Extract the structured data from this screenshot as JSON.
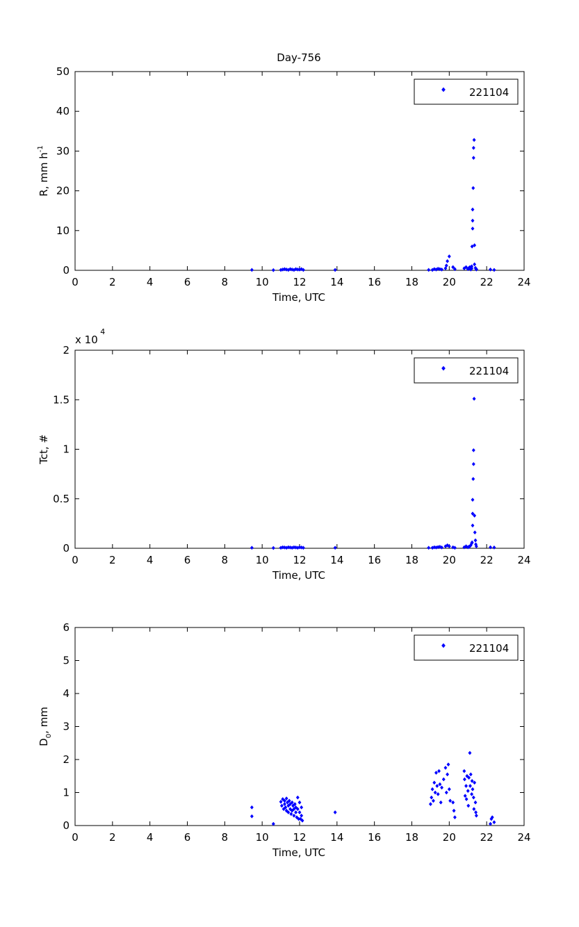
{
  "figure": {
    "title": "Day-756"
  },
  "colors": {
    "marker": "#0000ff",
    "axis": "#000000",
    "background": "#ffffff"
  },
  "chart_data": [
    {
      "type": "scatter",
      "title": "Day-756",
      "xlabel": "Time, UTC",
      "ylabel": {
        "main": "R, mm h",
        "superscript": "-1"
      },
      "xlim": [
        0,
        24
      ],
      "ylim": [
        0,
        50
      ],
      "xticks": [
        0,
        2,
        4,
        6,
        8,
        10,
        12,
        14,
        16,
        18,
        20,
        22,
        24
      ],
      "yticks": [
        0,
        10,
        20,
        30,
        40,
        50
      ],
      "exponent_label": "",
      "legend": {
        "label": "221104",
        "position": "top-right"
      },
      "grid": false,
      "series": [
        {
          "name": "221104",
          "marker": "diamond",
          "x": [
            9.45,
            10.6,
            11.0,
            11.1,
            11.2,
            11.3,
            11.4,
            11.5,
            11.6,
            11.7,
            11.8,
            11.9,
            12.0,
            12.1,
            12.2,
            13.9,
            18.9,
            19.1,
            19.2,
            19.3,
            19.4,
            19.5,
            19.6,
            19.8,
            19.85,
            19.9,
            20.0,
            20.2,
            20.3,
            20.8,
            20.9,
            21.0,
            21.05,
            21.1,
            21.15,
            21.2,
            21.2,
            21.22,
            21.25,
            21.25,
            21.25,
            21.28,
            21.3,
            21.3,
            21.33,
            21.35,
            21.35,
            21.4,
            21.45,
            21.45,
            22.2,
            22.4
          ],
          "y": [
            0.1,
            0.05,
            0.1,
            0.2,
            0.3,
            0.2,
            0.1,
            0.3,
            0.2,
            0.1,
            0.3,
            0.2,
            0.2,
            0.3,
            0.1,
            0.1,
            0.1,
            0.1,
            0.3,
            0.2,
            0.4,
            0.3,
            0.2,
            0.5,
            1.2,
            2.3,
            3.5,
            0.8,
            0.3,
            0.5,
            0.8,
            0.3,
            0.6,
            0.8,
            0.2,
            0.5,
            1.0,
            6.0,
            10.5,
            12.5,
            15.3,
            20.7,
            28.3,
            30.8,
            32.8,
            6.3,
            1.5,
            0.6,
            0.3,
            0.2,
            0.2,
            0.1
          ]
        }
      ]
    },
    {
      "type": "scatter",
      "title": "",
      "xlabel": "Time, UTC",
      "ylabel": {
        "main": "Tct, #",
        "superscript": ""
      },
      "xlim": [
        0,
        24
      ],
      "ylim": [
        0,
        2
      ],
      "xticks": [
        0,
        2,
        4,
        6,
        8,
        10,
        12,
        14,
        16,
        18,
        20,
        22,
        24
      ],
      "yticks": [
        0,
        0.5,
        1,
        1.5,
        2
      ],
      "exponent_label": {
        "base": "x 10",
        "power": "4"
      },
      "legend": {
        "label": "221104",
        "position": "top-right"
      },
      "grid": false,
      "series": [
        {
          "name": "221104",
          "marker": "diamond",
          "x": [
            9.45,
            10.6,
            11.0,
            11.1,
            11.2,
            11.3,
            11.4,
            11.5,
            11.6,
            11.7,
            11.8,
            11.9,
            12.0,
            12.1,
            12.2,
            13.9,
            18.9,
            19.1,
            19.2,
            19.3,
            19.4,
            19.5,
            19.6,
            19.8,
            19.9,
            20.0,
            20.2,
            20.3,
            20.8,
            20.9,
            21.0,
            21.05,
            21.1,
            21.15,
            21.2,
            21.22,
            21.25,
            21.25,
            21.25,
            21.28,
            21.3,
            21.3,
            21.33,
            21.35,
            21.37,
            21.4,
            21.42,
            21.45,
            22.2,
            22.4
          ],
          "y": [
            0.005,
            0.003,
            0.005,
            0.01,
            0.008,
            0.005,
            0.01,
            0.008,
            0.005,
            0.01,
            0.008,
            0.005,
            0.01,
            0.008,
            0.005,
            0.005,
            0.005,
            0.005,
            0.01,
            0.008,
            0.012,
            0.015,
            0.008,
            0.02,
            0.03,
            0.02,
            0.01,
            0.005,
            0.01,
            0.02,
            0.01,
            0.015,
            0.02,
            0.03,
            0.05,
            0.06,
            0.23,
            0.35,
            0.49,
            0.7,
            0.85,
            0.99,
            1.51,
            0.33,
            0.16,
            0.08,
            0.04,
            0.02,
            0.01,
            0.008
          ]
        }
      ]
    },
    {
      "type": "scatter",
      "title": "",
      "xlabel": "Time, UTC",
      "ylabel": {
        "main": "D",
        "subscript": "0",
        "suffix": ", mm"
      },
      "xlim": [
        0,
        24
      ],
      "ylim": [
        0,
        6
      ],
      "xticks": [
        0,
        2,
        4,
        6,
        8,
        10,
        12,
        14,
        16,
        18,
        20,
        22,
        24
      ],
      "yticks": [
        0,
        1,
        2,
        3,
        4,
        5,
        6
      ],
      "exponent_label": "",
      "legend": {
        "label": "221104",
        "position": "top-right"
      },
      "grid": false,
      "series": [
        {
          "name": "221104",
          "marker": "diamond",
          "x": [
            9.45,
            9.45,
            10.6,
            11.0,
            11.05,
            11.1,
            11.15,
            11.2,
            11.2,
            11.25,
            11.3,
            11.3,
            11.35,
            11.4,
            11.4,
            11.45,
            11.5,
            11.5,
            11.55,
            11.6,
            11.6,
            11.65,
            11.7,
            11.7,
            11.75,
            11.8,
            11.8,
            11.85,
            11.9,
            11.9,
            11.95,
            12.0,
            12.0,
            12.05,
            12.1,
            12.1,
            12.15,
            13.9,
            19.0,
            19.05,
            19.1,
            19.15,
            19.2,
            19.25,
            19.3,
            19.35,
            19.4,
            19.45,
            19.5,
            19.55,
            19.6,
            19.7,
            19.8,
            19.85,
            19.9,
            19.95,
            20.0,
            20.05,
            20.2,
            20.25,
            20.3,
            20.8,
            20.82,
            20.85,
            20.9,
            20.92,
            20.95,
            21.0,
            21.02,
            21.05,
            21.1,
            21.12,
            21.15,
            21.2,
            21.22,
            21.25,
            21.3,
            21.32,
            21.35,
            21.4,
            21.42,
            21.45,
            22.2,
            22.25,
            22.3,
            22.4
          ],
          "y": [
            0.55,
            0.28,
            0.05,
            0.72,
            0.6,
            0.8,
            0.5,
            0.65,
            0.75,
            0.55,
            0.82,
            0.45,
            0.7,
            0.6,
            0.4,
            0.75,
            0.5,
            0.65,
            0.35,
            0.7,
            0.45,
            0.6,
            0.5,
            0.3,
            0.65,
            0.4,
            0.55,
            0.25,
            0.85,
            0.5,
            0.2,
            0.7,
            0.4,
            0.2,
            0.55,
            0.3,
            0.15,
            0.4,
            0.65,
            0.85,
            1.1,
            0.75,
            1.3,
            1.0,
            1.6,
            1.2,
            0.95,
            1.65,
            1.25,
            0.7,
            1.15,
            1.4,
            1.75,
            1.0,
            1.55,
            1.85,
            1.1,
            0.75,
            0.7,
            0.45,
            0.25,
            1.65,
            1.4,
            0.9,
            1.2,
            0.8,
            1.5,
            1.05,
            0.6,
            1.45,
            2.2,
            1.2,
            1.55,
            0.95,
            1.35,
            1.1,
            0.85,
            0.5,
            1.3,
            0.7,
            0.4,
            0.3,
            0.05,
            0.2,
            0.25,
            0.1
          ]
        }
      ]
    }
  ]
}
